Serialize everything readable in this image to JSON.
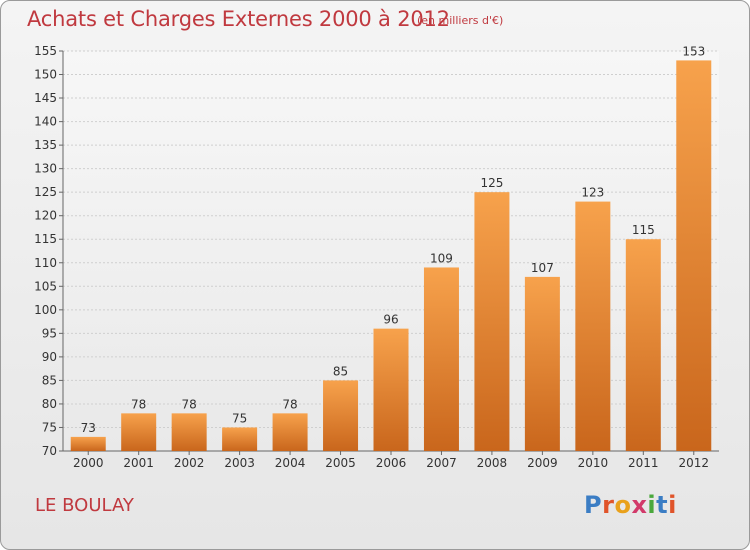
{
  "header": {
    "title": "Achats et Charges Externes 2000 à 2012",
    "subtitle": "(en milliers d'€)"
  },
  "footer": {
    "city": "LE BOULAY",
    "brand_letters": [
      "P",
      "r",
      "o",
      "x",
      "i",
      "t",
      "i"
    ],
    "brand_colors": [
      "#3b7dc4",
      "#e0542a",
      "#e9a11b",
      "#d23a6a",
      "#4aa83c",
      "#3b7dc4",
      "#e0542a"
    ]
  },
  "colors": {
    "bar_top": "#f7a24c",
    "bar_bottom": "#c9661c",
    "title": "#c0393f"
  },
  "chart_data": {
    "type": "bar",
    "title": "Achats et Charges Externes 2000 à 2012",
    "subtitle": "(en milliers d'€)",
    "categories": [
      "2000",
      "2001",
      "2002",
      "2003",
      "2004",
      "2005",
      "2006",
      "2007",
      "2008",
      "2009",
      "2010",
      "2011",
      "2012"
    ],
    "values": [
      73,
      78,
      78,
      75,
      78,
      85,
      96,
      109,
      125,
      107,
      123,
      115,
      153
    ],
    "ylim": [
      70,
      155
    ],
    "yticks": [
      70,
      75,
      80,
      85,
      90,
      95,
      100,
      105,
      110,
      115,
      120,
      125,
      130,
      135,
      140,
      145,
      150,
      155
    ],
    "grid": true
  }
}
